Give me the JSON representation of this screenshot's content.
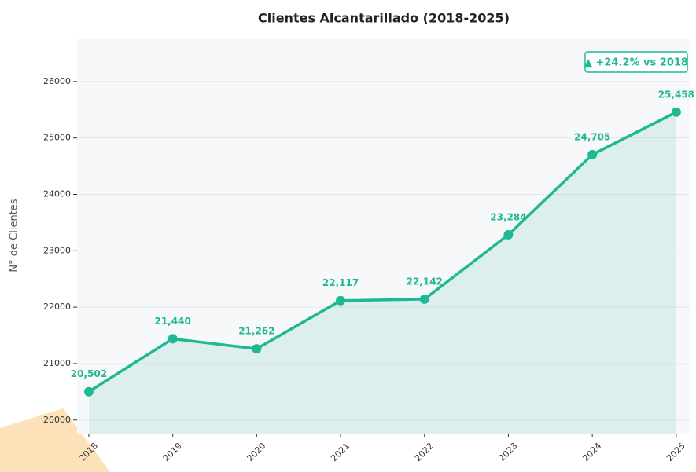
{
  "chart_data": {
    "type": "line",
    "title": "Clientes Alcantarillado (2018-2025)",
    "y_label": "N° de Clientes",
    "annotation": "▲ +24.2% vs 2018",
    "x": [
      2018,
      2019,
      2020,
      2021,
      2022,
      2023,
      2024,
      2025
    ],
    "series": [
      {
        "name": "Clientes",
        "color": "#1fb894",
        "values": [
          20502,
          21440,
          21262,
          22117,
          22142,
          23284,
          24705,
          25458
        ],
        "value_labels": [
          "20,502",
          "21,440",
          "21,262",
          "22,117",
          "22,142",
          "23,284",
          "24,705",
          "25,458"
        ]
      }
    ],
    "xlim": [
      2017.86,
      2025.17
    ],
    "xticks": [
      2018,
      2019,
      2020,
      2021,
      2022,
      2023,
      2024,
      2025
    ],
    "ylim": [
      19760,
      26750
    ],
    "yticks": [
      20000,
      21000,
      22000,
      23000,
      24000,
      25000,
      26000
    ],
    "grid": true
  }
}
